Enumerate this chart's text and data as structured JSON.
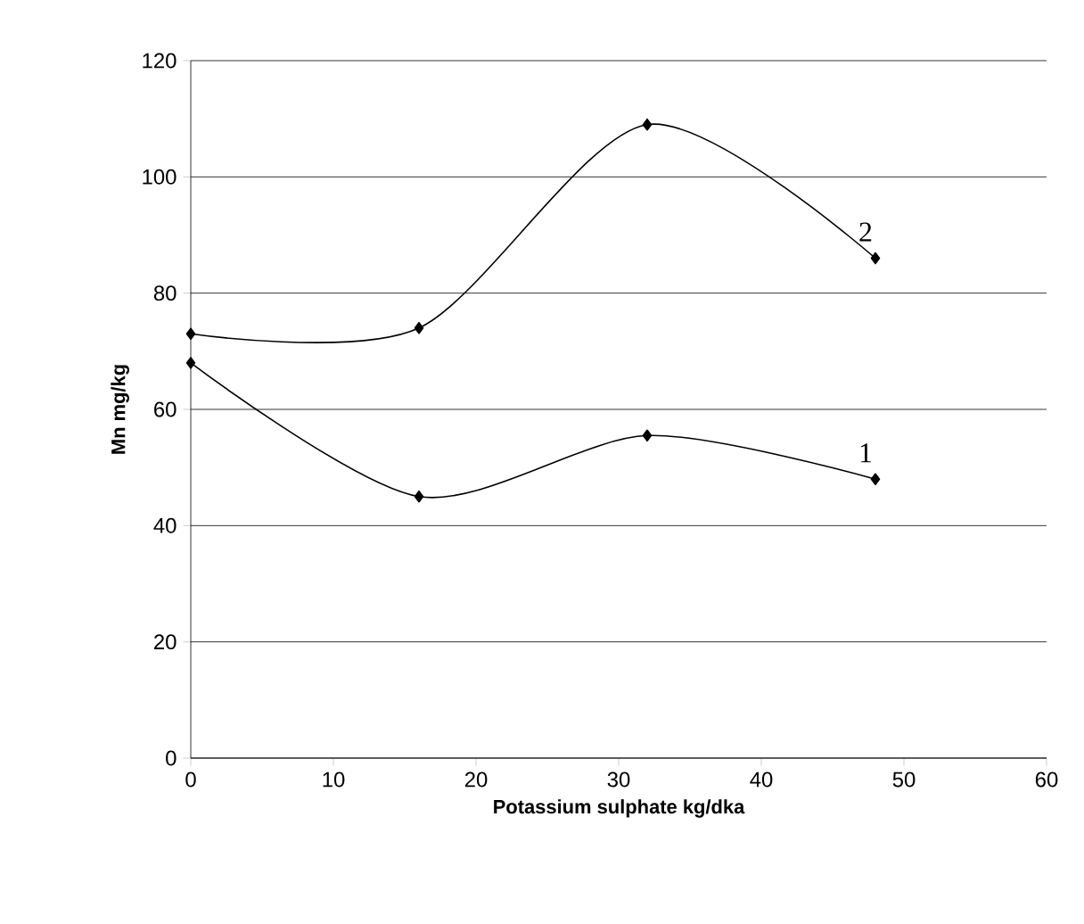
{
  "chart_data": {
    "type": "line",
    "xlabel": "Potassium sulphate kg/dka",
    "ylabel": "Mn mg/kg",
    "x": [
      0,
      16,
      32,
      48
    ],
    "series": [
      {
        "name": "1",
        "color": "#000000",
        "values": [
          68,
          45,
          55.5,
          48
        ]
      },
      {
        "name": "2",
        "color": "#000000",
        "values": [
          73,
          74,
          109,
          86
        ]
      }
    ],
    "xlim": [
      0,
      60
    ],
    "xticks": [
      0,
      10,
      20,
      30,
      40,
      50,
      60
    ],
    "ylim": [
      0,
      120
    ],
    "yticks": [
      0,
      20,
      40,
      60,
      80,
      100,
      120
    ],
    "grid": "y",
    "legend": false,
    "marker": "diamond",
    "line_style": "solid"
  }
}
